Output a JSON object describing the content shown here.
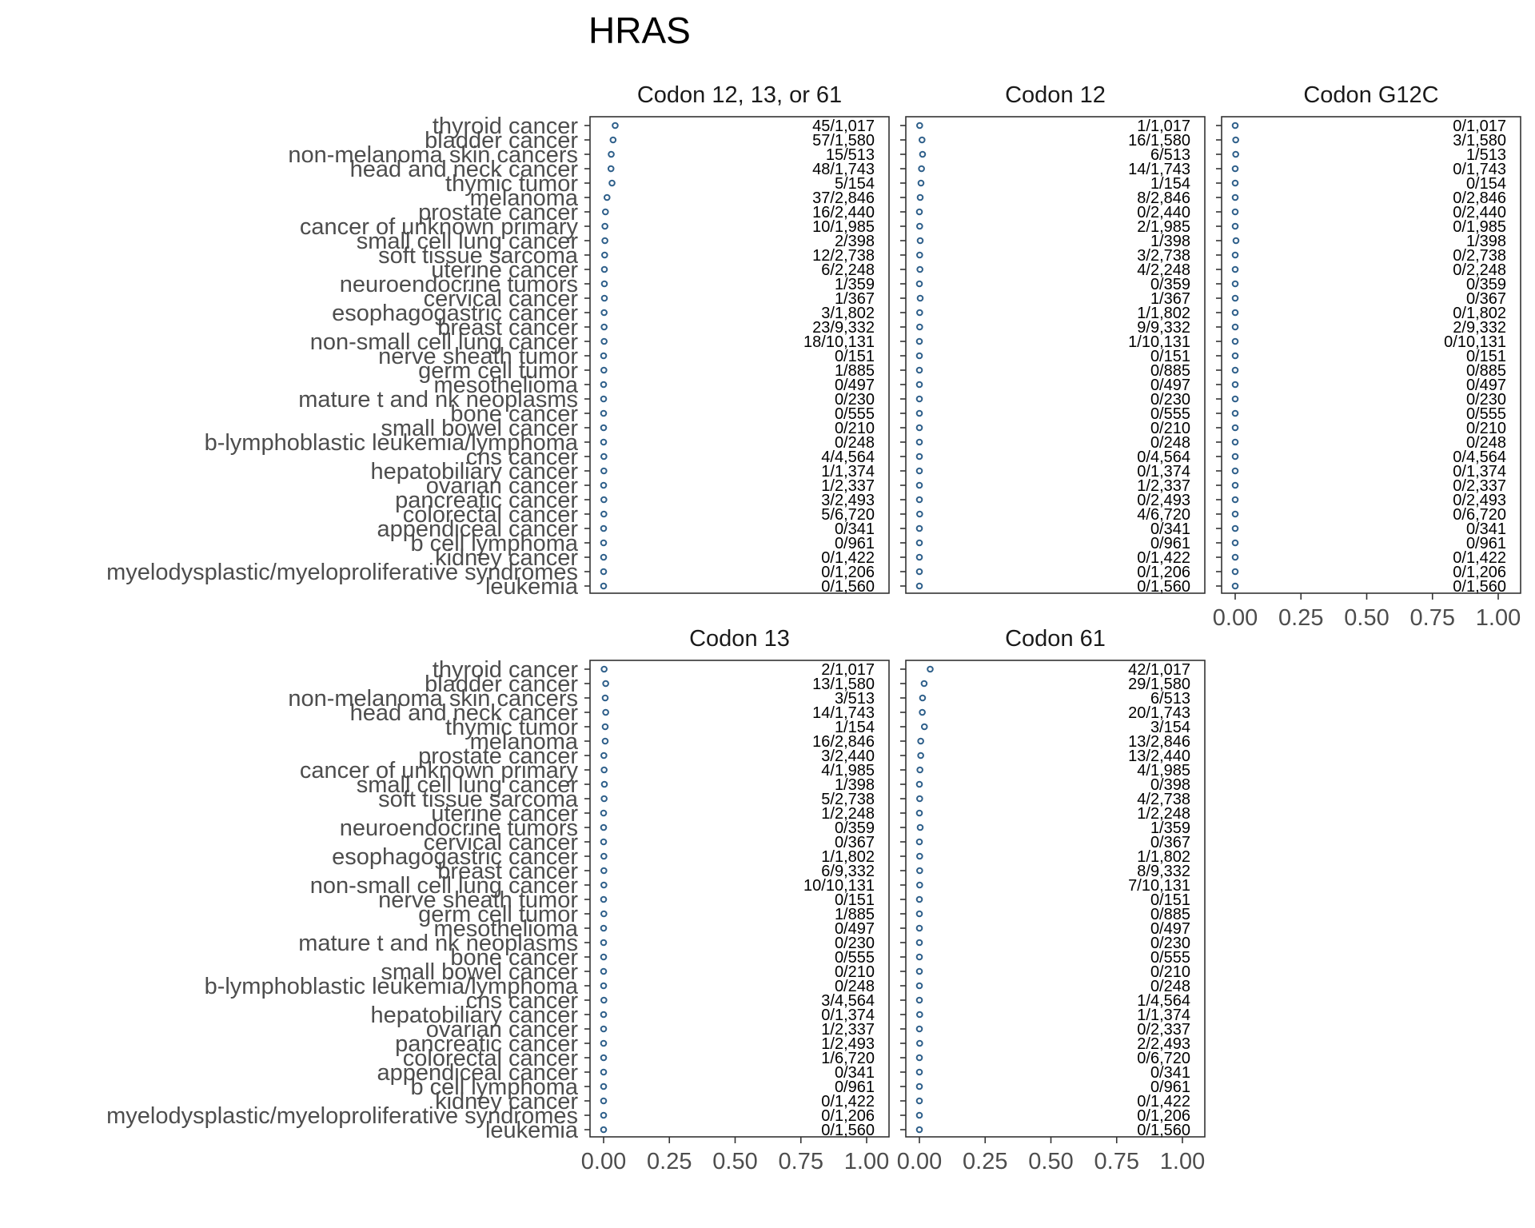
{
  "title": "HRAS",
  "chart_data": {
    "type": "scatter",
    "title": "HRAS",
    "xlim": [
      0,
      1
    ],
    "x_ticks": [
      "0.00",
      "0.25",
      "0.50",
      "0.75",
      "1.00"
    ],
    "grid": false,
    "point_color": "#2e5f8a",
    "categories": [
      "thyroid cancer",
      "bladder cancer",
      "non-melanoma skin cancers",
      "head and neck cancer",
      "thymic tumor",
      "melanoma",
      "prostate cancer",
      "cancer of unknown primary",
      "small cell lung cancer",
      "soft tissue sarcoma",
      "uterine cancer",
      "neuroendocrine tumors",
      "cervical cancer",
      "esophagogastric cancer",
      "breast cancer",
      "non-small cell lung cancer",
      "nerve sheath tumor",
      "germ cell tumor",
      "mesothelioma",
      "mature t and nk neoplasms",
      "bone cancer",
      "small bowel cancer",
      "b-lymphoblastic leukemia/lymphoma",
      "cns cancer",
      "hepatobiliary cancer",
      "ovarian cancer",
      "pancreatic cancer",
      "colorectal cancer",
      "appendiceal cancer",
      "b cell lymphoma",
      "kidney cancer",
      "myelodysplastic/myeloproliferative syndromes",
      "leukemia"
    ],
    "panels": [
      {
        "name": "Codon 12, 13, or 61",
        "counts": [
          "45/1,017",
          "57/1,580",
          "15/513",
          "48/1,743",
          "5/154",
          "37/2,846",
          "16/2,440",
          "10/1,985",
          "2/398",
          "12/2,738",
          "6/2,248",
          "1/359",
          "1/367",
          "3/1,802",
          "23/9,332",
          "18/10,131",
          "0/151",
          "1/885",
          "0/497",
          "0/230",
          "0/555",
          "0/210",
          "0/248",
          "4/4,564",
          "1/1,374",
          "1/2,337",
          "3/2,493",
          "5/6,720",
          "0/341",
          "0/961",
          "0/1,422",
          "0/1,206",
          "0/1,560"
        ],
        "values": [
          0.044,
          0.036,
          0.029,
          0.028,
          0.032,
          0.013,
          0.007,
          0.005,
          0.005,
          0.004,
          0.003,
          0.003,
          0.003,
          0.002,
          0.002,
          0.002,
          0.0,
          0.001,
          0.0,
          0.0,
          0.0,
          0.0,
          0.0,
          0.001,
          0.001,
          0.0,
          0.001,
          0.001,
          0.0,
          0.0,
          0.0,
          0.0,
          0.0
        ]
      },
      {
        "name": "Codon 12",
        "counts": [
          "1/1,017",
          "16/1,580",
          "6/513",
          "14/1,743",
          "1/154",
          "8/2,846",
          "0/2,440",
          "2/1,985",
          "1/398",
          "3/2,738",
          "4/2,248",
          "0/359",
          "1/367",
          "1/1,802",
          "9/9,332",
          "1/10,131",
          "0/151",
          "0/885",
          "0/497",
          "0/230",
          "0/555",
          "0/210",
          "0/248",
          "0/4,564",
          "0/1,374",
          "1/2,337",
          "0/2,493",
          "4/6,720",
          "0/341",
          "0/961",
          "0/1,422",
          "0/1,206",
          "0/1,560"
        ],
        "values": [
          0.001,
          0.01,
          0.012,
          0.008,
          0.006,
          0.003,
          0.0,
          0.001,
          0.003,
          0.001,
          0.002,
          0.0,
          0.003,
          0.001,
          0.001,
          0.0,
          0.0,
          0.0,
          0.0,
          0.0,
          0.0,
          0.0,
          0.0,
          0.0,
          0.0,
          0.0,
          0.0,
          0.001,
          0.0,
          0.0,
          0.0,
          0.0,
          0.0
        ]
      },
      {
        "name": "Codon G12C",
        "counts": [
          "0/1,017",
          "3/1,580",
          "1/513",
          "0/1,743",
          "0/154",
          "0/2,846",
          "0/2,440",
          "0/1,985",
          "1/398",
          "0/2,738",
          "0/2,248",
          "0/359",
          "0/367",
          "0/1,802",
          "2/9,332",
          "0/10,131",
          "0/151",
          "0/885",
          "0/497",
          "0/230",
          "0/555",
          "0/210",
          "0/248",
          "0/4,564",
          "0/1,374",
          "0/2,337",
          "0/2,493",
          "0/6,720",
          "0/341",
          "0/961",
          "0/1,422",
          "0/1,206",
          "0/1,560"
        ],
        "values": [
          0.0,
          0.002,
          0.002,
          0.0,
          0.0,
          0.0,
          0.0,
          0.0,
          0.003,
          0.0,
          0.0,
          0.0,
          0.0,
          0.0,
          0.0,
          0.0,
          0.0,
          0.0,
          0.0,
          0.0,
          0.0,
          0.0,
          0.0,
          0.0,
          0.0,
          0.0,
          0.0,
          0.0,
          0.0,
          0.0,
          0.0,
          0.0,
          0.0
        ]
      },
      {
        "name": "Codon 13",
        "counts": [
          "2/1,017",
          "13/1,580",
          "3/513",
          "14/1,743",
          "1/154",
          "16/2,846",
          "3/2,440",
          "4/1,985",
          "1/398",
          "5/2,738",
          "1/2,248",
          "0/359",
          "0/367",
          "1/1,802",
          "6/9,332",
          "10/10,131",
          "0/151",
          "1/885",
          "0/497",
          "0/230",
          "0/555",
          "0/210",
          "0/248",
          "3/4,564",
          "0/1,374",
          "1/2,337",
          "1/2,493",
          "1/6,720",
          "0/341",
          "0/961",
          "0/1,422",
          "0/1,206",
          "0/1,560"
        ],
        "values": [
          0.002,
          0.008,
          0.006,
          0.008,
          0.006,
          0.006,
          0.001,
          0.002,
          0.003,
          0.002,
          0.0,
          0.0,
          0.0,
          0.001,
          0.001,
          0.001,
          0.0,
          0.001,
          0.0,
          0.0,
          0.0,
          0.0,
          0.0,
          0.001,
          0.0,
          0.0,
          0.0,
          0.0,
          0.0,
          0.0,
          0.0,
          0.0,
          0.0
        ]
      },
      {
        "name": "Codon 61",
        "counts": [
          "42/1,017",
          "29/1,580",
          "6/513",
          "20/1,743",
          "3/154",
          "13/2,846",
          "13/2,440",
          "4/1,985",
          "0/398",
          "4/2,738",
          "1/2,248",
          "1/359",
          "0/367",
          "1/1,802",
          "8/9,332",
          "7/10,131",
          "0/151",
          "0/885",
          "0/497",
          "0/230",
          "0/555",
          "0/210",
          "0/248",
          "1/4,564",
          "1/1,374",
          "0/2,337",
          "2/2,493",
          "0/6,720",
          "0/341",
          "0/961",
          "0/1,422",
          "0/1,206",
          "0/1,560"
        ],
        "values": [
          0.041,
          0.018,
          0.012,
          0.011,
          0.019,
          0.005,
          0.005,
          0.002,
          0.0,
          0.001,
          0.0,
          0.003,
          0.0,
          0.001,
          0.001,
          0.001,
          0.0,
          0.0,
          0.0,
          0.0,
          0.0,
          0.0,
          0.0,
          0.0,
          0.001,
          0.0,
          0.001,
          0.0,
          0.0,
          0.0,
          0.0,
          0.0,
          0.0
        ]
      }
    ]
  }
}
